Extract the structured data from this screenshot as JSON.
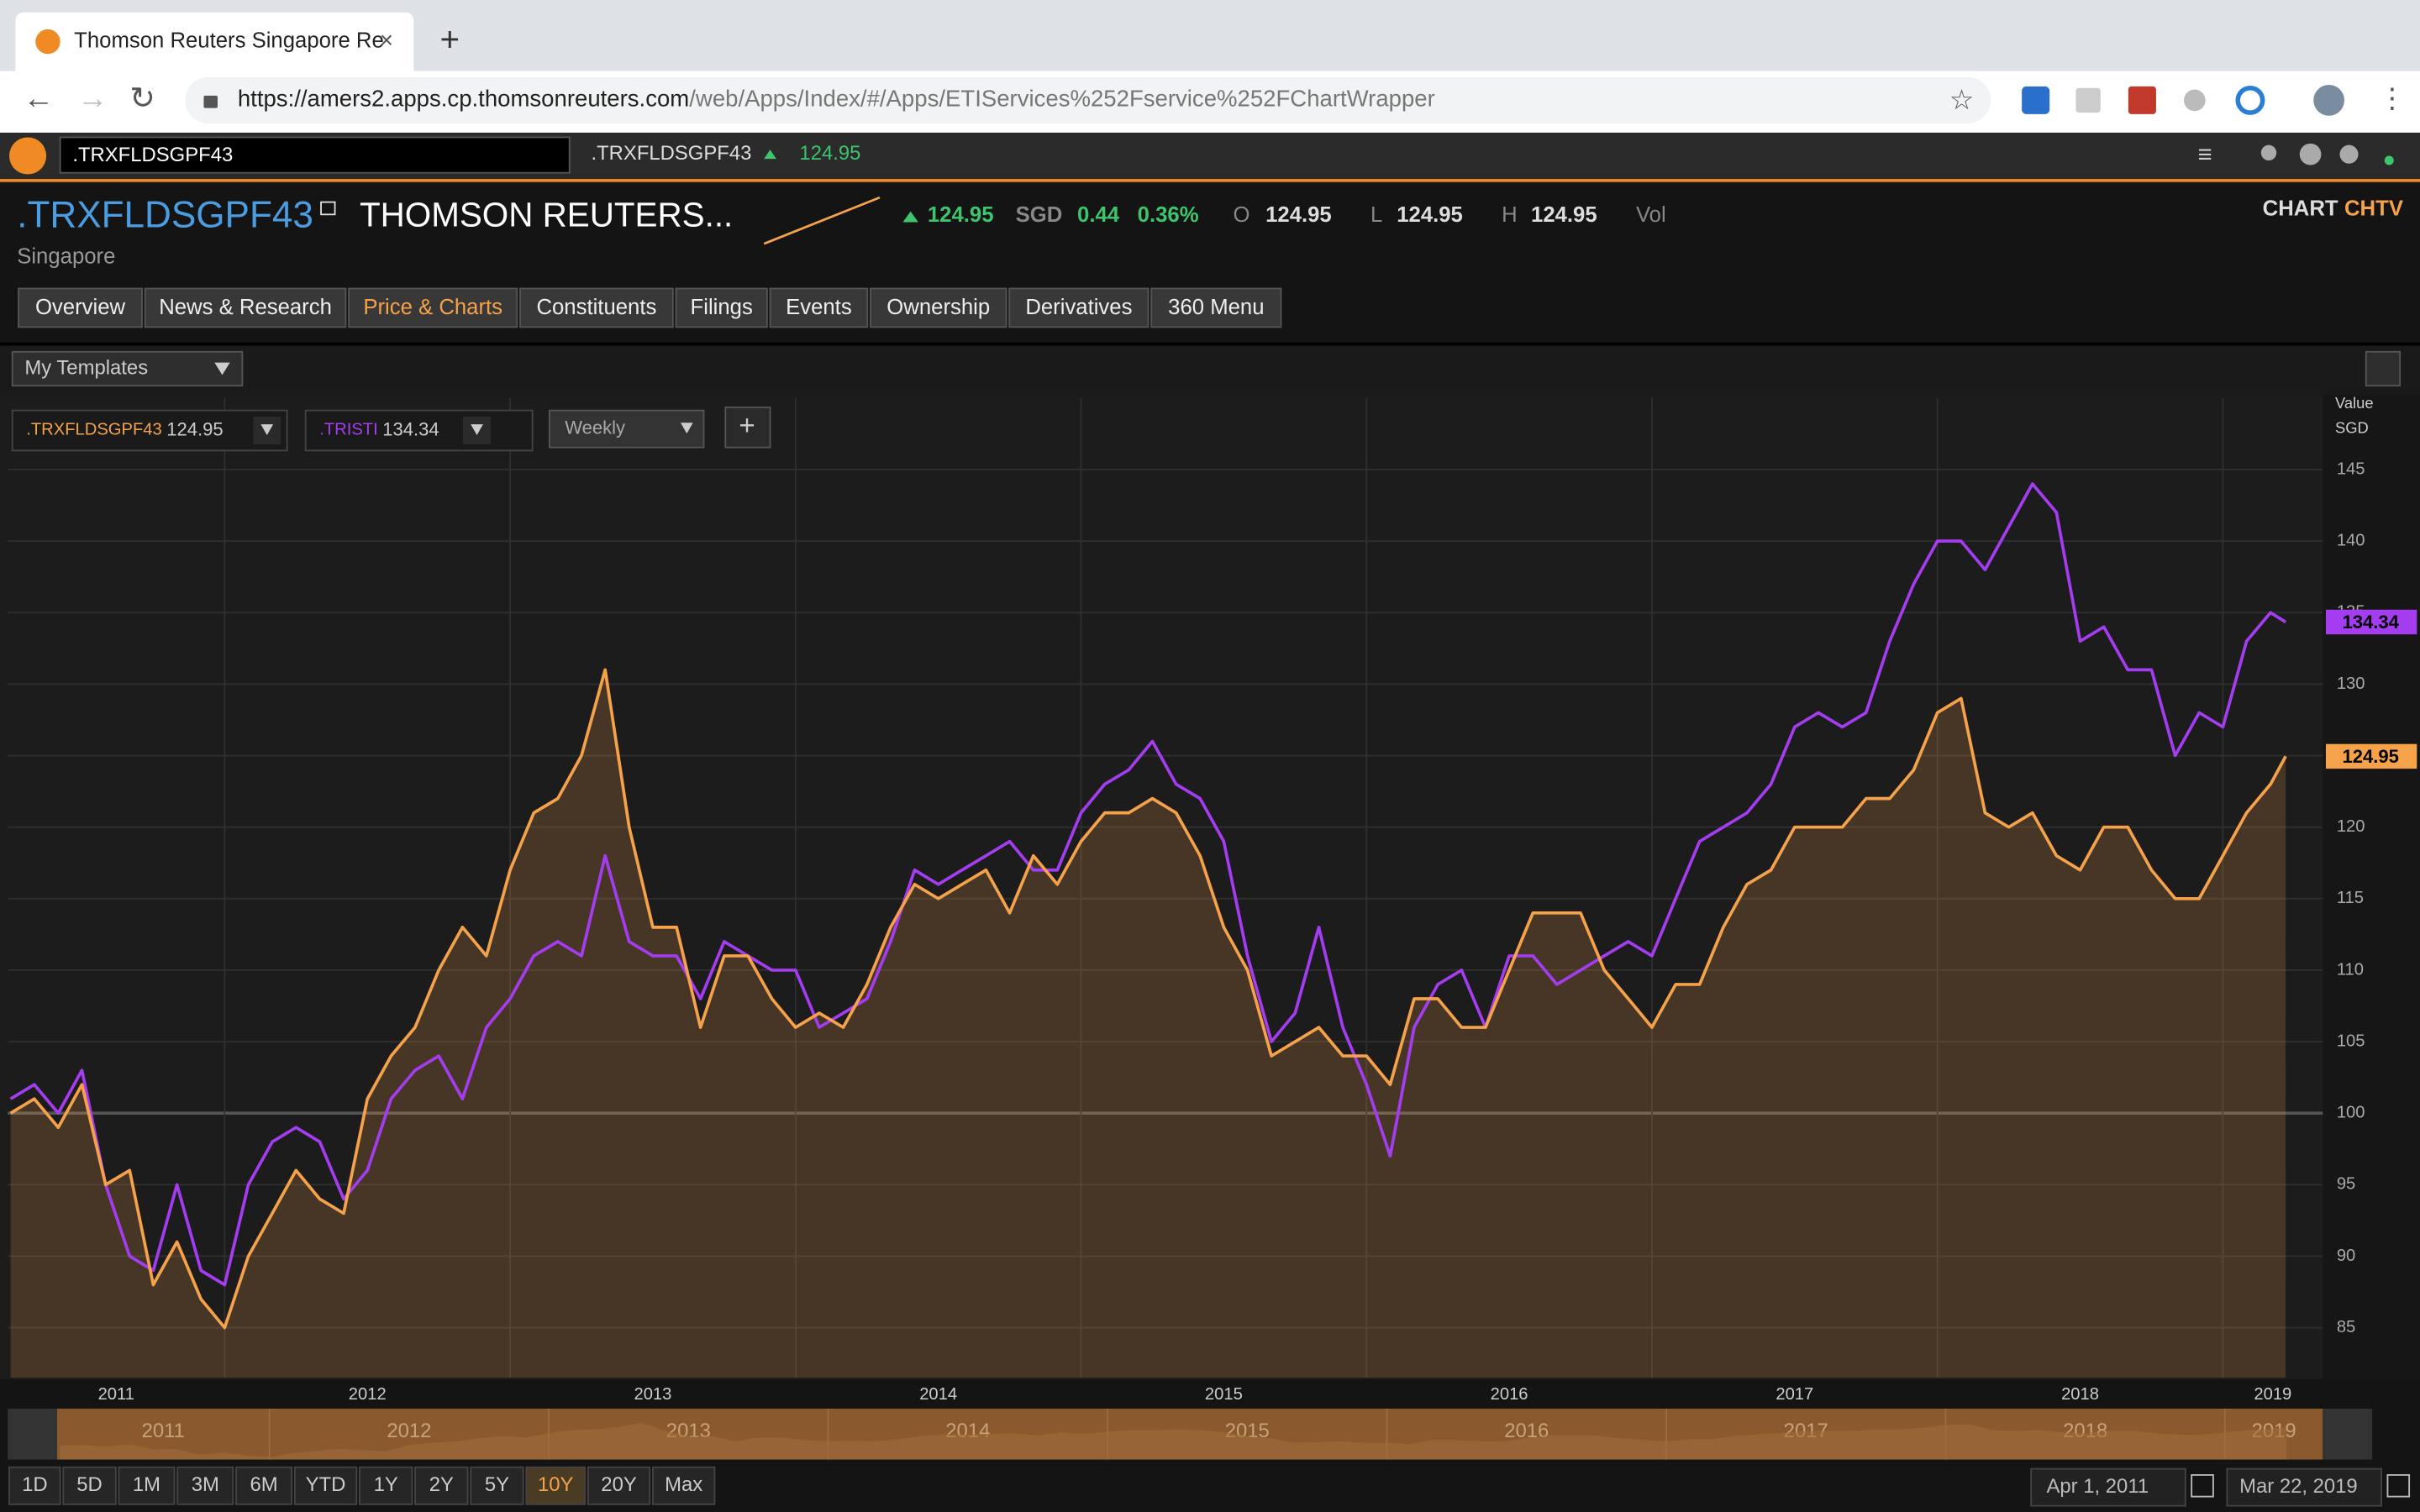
{
  "browser": {
    "tab_title": "Thomson Reuters Singapore Re",
    "url_host": "https://amers2.apps.cp.thomsonreuters.com",
    "url_path": "/web/Apps/Index/#/Apps/ETIServices%252Fservice%252FChartWrapper"
  },
  "app_bar": {
    "search": ".TRXFLDSGPF43",
    "ric": ".TRXFLDSGPF43",
    "price": "124.95"
  },
  "header": {
    "ric": ".TRXFLDSGPF43",
    "name": "THOMSON REUTERS...",
    "country": "Singapore",
    "last": "124.95",
    "currency": "SGD",
    "change": "0.44",
    "change_pct": "0.36%",
    "open_label": "O",
    "open": "124.95",
    "low_label": "L",
    "low": "124.95",
    "high_label": "H",
    "high": "124.95",
    "vol_label": "Vol",
    "chart_link": "CHART",
    "chtv_link": "CHTV"
  },
  "nav_tabs": [
    "Overview",
    "News & Research",
    "Price & Charts",
    "Constituents",
    "Filings",
    "Events",
    "Ownership",
    "Derivatives",
    "360 Menu"
  ],
  "templates": "My Templates",
  "interval": "Weekly",
  "chart_data": {
    "type": "line",
    "y_axis_label": "Value",
    "y_unit": "SGD",
    "xlim": [
      2011.24,
      2019.35
    ],
    "xticks": [
      2011,
      2012,
      2013,
      2014,
      2015,
      2016,
      2017,
      2018,
      2019
    ],
    "ylim": [
      81.5,
      150
    ],
    "yticks": [
      85,
      90,
      95,
      100,
      105,
      110,
      115,
      120,
      125,
      130,
      135,
      140,
      145
    ],
    "baseline": 100,
    "grid": true,
    "x": [
      2011.25,
      2011.333,
      2011.417,
      2011.5,
      2011.583,
      2011.667,
      2011.75,
      2011.833,
      2011.917,
      2012,
      2012.083,
      2012.167,
      2012.25,
      2012.333,
      2012.417,
      2012.5,
      2012.583,
      2012.667,
      2012.75,
      2012.833,
      2012.917,
      2013,
      2013.083,
      2013.167,
      2013.25,
      2013.333,
      2013.417,
      2013.5,
      2013.583,
      2013.667,
      2013.75,
      2013.833,
      2013.917,
      2014,
      2014.083,
      2014.167,
      2014.25,
      2014.333,
      2014.417,
      2014.5,
      2014.583,
      2014.667,
      2014.75,
      2014.833,
      2014.917,
      2015,
      2015.083,
      2015.167,
      2015.25,
      2015.333,
      2015.417,
      2015.5,
      2015.583,
      2015.667,
      2015.75,
      2015.833,
      2015.917,
      2016,
      2016.083,
      2016.167,
      2016.25,
      2016.333,
      2016.417,
      2016.5,
      2016.583,
      2016.667,
      2016.75,
      2016.833,
      2016.917,
      2017,
      2017.083,
      2017.167,
      2017.25,
      2017.333,
      2017.417,
      2017.5,
      2017.583,
      2017.667,
      2017.75,
      2017.833,
      2017.917,
      2018,
      2018.083,
      2018.167,
      2018.25,
      2018.333,
      2018.417,
      2018.5,
      2018.583,
      2018.667,
      2018.75,
      2018.833,
      2018.917,
      2019,
      2019.083,
      2019.167,
      2019.22
    ],
    "series": [
      {
        "name": ".TRXFLDSGPF43",
        "color": "#f5a24a",
        "area": true,
        "values": [
          100,
          101,
          99,
          102,
          95,
          96,
          88,
          91,
          87,
          85,
          90,
          93,
          96,
          94,
          93,
          101,
          104,
          106,
          110,
          113,
          111,
          117,
          121,
          122,
          125,
          131,
          120,
          113,
          113,
          106,
          111,
          111,
          108,
          106,
          107,
          106,
          109,
          113,
          116,
          115,
          116,
          117,
          114,
          118,
          116,
          119,
          121,
          121,
          122,
          121,
          118,
          113,
          110,
          104,
          105,
          106,
          104,
          104,
          102,
          108,
          108,
          106,
          106,
          110,
          114,
          114,
          114,
          110,
          108,
          106,
          109,
          109,
          113,
          116,
          117,
          120,
          120,
          120,
          122,
          122,
          124,
          128,
          129,
          121,
          120,
          121,
          118,
          117,
          120,
          120,
          117,
          115,
          115,
          118,
          121,
          123,
          124.95
        ]
      },
      {
        "name": ".TRISTI",
        "color": "#a43cf0",
        "values": [
          101,
          102,
          100,
          103,
          95,
          90,
          89,
          95,
          89,
          88,
          95,
          98,
          99,
          98,
          94,
          96,
          101,
          103,
          104,
          101,
          106,
          108,
          111,
          112,
          111,
          118,
          112,
          111,
          111,
          108,
          112,
          111,
          110,
          110,
          106,
          107,
          108,
          112,
          117,
          116,
          117,
          118,
          119,
          117,
          117,
          121,
          123,
          124,
          126,
          123,
          122,
          119,
          111,
          105,
          107,
          113,
          106,
          102,
          97,
          106,
          109,
          110,
          106,
          111,
          111,
          109,
          110,
          111,
          112,
          111,
          115,
          119,
          120,
          121,
          123,
          127,
          128,
          127,
          128,
          133,
          137,
          140,
          140,
          138,
          141,
          144,
          142,
          133,
          134,
          131,
          131,
          125,
          128,
          127,
          133,
          135,
          134.34
        ]
      }
    ]
  },
  "ranges": [
    "1D",
    "5D",
    "1M",
    "3M",
    "6M",
    "YTD",
    "1Y",
    "2Y",
    "5Y",
    "10Y",
    "20Y",
    "Max"
  ],
  "active_range": "10Y",
  "date_from": "Apr 1, 2011",
  "date_to": "Mar 22, 2019"
}
